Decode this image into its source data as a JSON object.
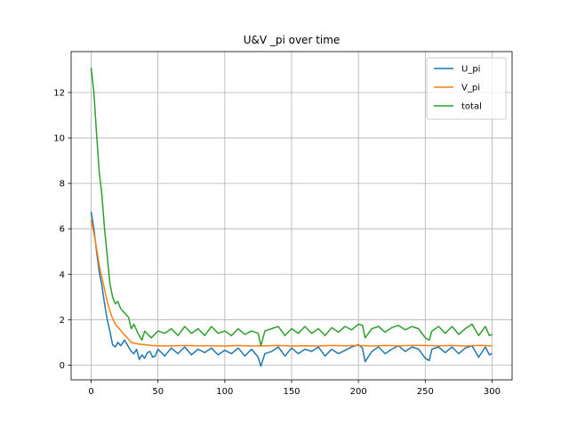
{
  "chart_data": {
    "type": "line",
    "title": "U&V _pi over time",
    "xlabel": "",
    "ylabel": "",
    "xlim": [
      -15,
      315
    ],
    "ylim": [
      -0.65,
      13.8
    ],
    "xticks": [
      0,
      50,
      100,
      150,
      200,
      250,
      300
    ],
    "yticks": [
      0,
      2,
      4,
      6,
      8,
      10,
      12
    ],
    "grid": true,
    "legend_position": "top-right",
    "series": [
      {
        "name": "U_pi",
        "color": "#1f77b4",
        "x": [
          0,
          2,
          4,
          6,
          8,
          10,
          12,
          14,
          16,
          18,
          20,
          22,
          25,
          28,
          30,
          32,
          34,
          36,
          38,
          40,
          42,
          44,
          46,
          48,
          50,
          55,
          60,
          65,
          70,
          75,
          80,
          85,
          90,
          95,
          100,
          105,
          110,
          115,
          120,
          125,
          127,
          130,
          135,
          140,
          145,
          150,
          155,
          160,
          165,
          170,
          175,
          180,
          185,
          190,
          195,
          200,
          203,
          205,
          210,
          215,
          220,
          225,
          230,
          235,
          240,
          245,
          250,
          253,
          255,
          260,
          265,
          270,
          275,
          280,
          285,
          290,
          295,
          298,
          300
        ],
        "values": [
          6.75,
          6.0,
          5.0,
          4.1,
          3.5,
          2.7,
          2.0,
          1.5,
          0.9,
          0.8,
          1.0,
          0.85,
          1.1,
          0.8,
          0.6,
          0.5,
          0.7,
          0.25,
          0.45,
          0.3,
          0.55,
          0.6,
          0.35,
          0.4,
          0.7,
          0.4,
          0.75,
          0.5,
          0.8,
          0.45,
          0.7,
          0.55,
          0.75,
          0.45,
          0.65,
          0.5,
          0.75,
          0.4,
          0.7,
          0.35,
          -0.05,
          0.5,
          0.6,
          0.8,
          0.4,
          0.75,
          0.5,
          0.7,
          0.6,
          0.8,
          0.4,
          0.7,
          0.5,
          0.65,
          0.8,
          0.9,
          0.75,
          0.15,
          0.6,
          0.8,
          0.5,
          0.7,
          0.85,
          0.6,
          0.8,
          0.7,
          0.3,
          0.2,
          0.7,
          0.8,
          0.55,
          0.8,
          0.5,
          0.75,
          0.85,
          0.35,
          0.8,
          0.45,
          0.5
        ]
      },
      {
        "name": "V_pi",
        "color": "#ff7f0e",
        "x": [
          0,
          3,
          6,
          9,
          12,
          15,
          18,
          21,
          24,
          27,
          30,
          33,
          36,
          40,
          45,
          50,
          60,
          70,
          80,
          90,
          100,
          110,
          120,
          130,
          140,
          150,
          160,
          170,
          180,
          190,
          200,
          210,
          220,
          230,
          240,
          250,
          260,
          270,
          280,
          290,
          300
        ],
        "values": [
          6.4,
          5.5,
          4.4,
          3.6,
          2.8,
          2.2,
          1.8,
          1.6,
          1.4,
          1.2,
          1.0,
          0.95,
          0.92,
          0.9,
          0.86,
          0.85,
          0.84,
          0.86,
          0.85,
          0.85,
          0.84,
          0.86,
          0.84,
          0.85,
          0.86,
          0.84,
          0.85,
          0.84,
          0.86,
          0.85,
          0.87,
          0.84,
          0.86,
          0.85,
          0.87,
          0.86,
          0.85,
          0.86,
          0.84,
          0.87,
          0.85
        ]
      },
      {
        "name": "total",
        "color": "#2ca02c",
        "x": [
          0,
          2,
          4,
          6,
          8,
          10,
          12,
          14,
          16,
          18,
          20,
          22,
          25,
          28,
          30,
          32,
          35,
          38,
          40,
          45,
          50,
          55,
          60,
          65,
          70,
          75,
          80,
          85,
          90,
          95,
          100,
          105,
          110,
          115,
          120,
          125,
          127,
          130,
          135,
          140,
          145,
          150,
          155,
          160,
          165,
          170,
          175,
          180,
          185,
          190,
          195,
          200,
          203,
          205,
          210,
          215,
          220,
          225,
          230,
          235,
          240,
          245,
          250,
          253,
          255,
          260,
          265,
          270,
          275,
          280,
          285,
          290,
          295,
          298,
          300
        ],
        "values": [
          13.1,
          12.0,
          10.2,
          8.5,
          7.5,
          6.0,
          4.8,
          3.6,
          3.0,
          2.7,
          2.8,
          2.5,
          2.3,
          2.1,
          1.6,
          1.8,
          1.4,
          1.1,
          1.5,
          1.2,
          1.5,
          1.4,
          1.6,
          1.3,
          1.7,
          1.4,
          1.6,
          1.3,
          1.7,
          1.4,
          1.5,
          1.3,
          1.6,
          1.35,
          1.5,
          1.4,
          0.85,
          1.5,
          1.6,
          1.7,
          1.3,
          1.6,
          1.4,
          1.7,
          1.4,
          1.6,
          1.3,
          1.65,
          1.45,
          1.7,
          1.55,
          1.8,
          1.75,
          1.2,
          1.6,
          1.7,
          1.45,
          1.65,
          1.75,
          1.55,
          1.7,
          1.6,
          1.2,
          1.1,
          1.5,
          1.7,
          1.4,
          1.7,
          1.35,
          1.6,
          1.8,
          1.3,
          1.7,
          1.3,
          1.35
        ]
      }
    ]
  }
}
